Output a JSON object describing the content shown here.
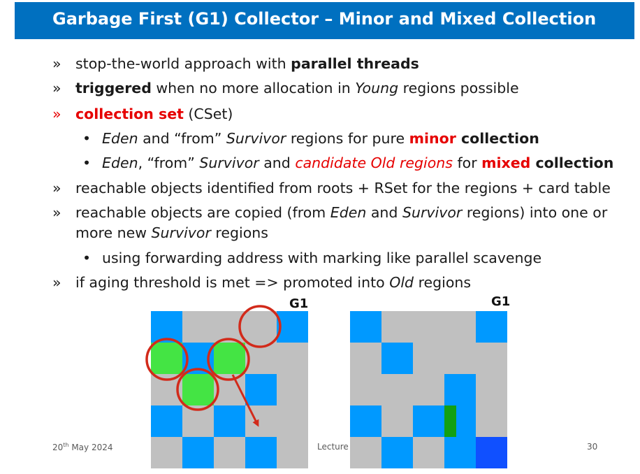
{
  "title": "Garbage First (G1) Collector – Minor and Mixed Collection",
  "bullets": {
    "b1": {
      "marker": "»",
      "pre": "stop-the-world approach with ",
      "bold": "parallel threads"
    },
    "b2": {
      "marker": "»",
      "bold": "triggered",
      "mid": " when no more allocation in ",
      "it": "Young",
      "post": " regions possible"
    },
    "b3": {
      "marker": "»",
      "red_bold": "collection set",
      "post": " (CSet)"
    },
    "b3a": {
      "marker": "•",
      "it1": "Eden",
      "mid1": " and “from” ",
      "it2": "Survivor",
      "mid2": " regions for pure ",
      "red_bold": "minor",
      "bold": " collection"
    },
    "b3b": {
      "marker": "•",
      "it1": "Eden",
      "mid1": ", “from” ",
      "it2": "Survivor",
      "mid2": " and ",
      "red_it": "candidate Old regions",
      "mid3": " for ",
      "red_bold": "mixed",
      "bold": " collection"
    },
    "b4": {
      "marker": "»",
      "text": "reachable objects identified from roots + RSet for the regions + card table"
    },
    "b5": {
      "marker": "»",
      "pre": "reachable objects are copied (from ",
      "it1": "Eden",
      "mid": " and ",
      "it2": "Survivor",
      "post": " regions) into one or",
      "line2_pre": "more new ",
      "line2_it": "Survivor",
      "line2_post": " regions"
    },
    "b5a": {
      "marker": "•",
      "text": "using forwarding address with marking like parallel scavenge"
    },
    "b6": {
      "marker": "»",
      "pre": "if aging threshold is met => promoted into ",
      "it": "Old",
      "post": " regions"
    }
  },
  "footer": {
    "date_day": "20",
    "date_sup": "th",
    "date_rest": " May 2024",
    "center": "Lecture",
    "page": "30"
  },
  "diagrams": {
    "left_label": "G1",
    "right_label": "G1"
  },
  "colors": {
    "title_bg": "#0070c0",
    "region_gray": "#c0c0c0",
    "region_blue": "#0099ff",
    "region_green": "#44e444",
    "circle_red": "#d22a1a",
    "old_green": "#12a012",
    "dark_blue": "#1050ff"
  },
  "grids": {
    "left": [
      [
        "blue",
        "gray",
        "gray",
        "gray",
        "blue"
      ],
      [
        "green",
        "blue",
        "green",
        "gray",
        "gray"
      ],
      [
        "gray",
        "green",
        "gray",
        "blue",
        "gray"
      ],
      [
        "blue",
        "gray",
        "blue",
        "gray",
        "gray"
      ],
      [
        "gray",
        "blue",
        "gray",
        "blue",
        "gray"
      ]
    ],
    "right": [
      [
        "blue",
        "gray",
        "gray",
        "gray",
        "blue"
      ],
      [
        "gray",
        "blue",
        "gray",
        "gray",
        "gray"
      ],
      [
        "gray",
        "gray",
        "gray",
        "blue",
        "gray"
      ],
      [
        "blue",
        "gray",
        "blue",
        "greenblue",
        "gray"
      ],
      [
        "gray",
        "blue",
        "gray",
        "blue",
        "darkblue"
      ]
    ]
  }
}
